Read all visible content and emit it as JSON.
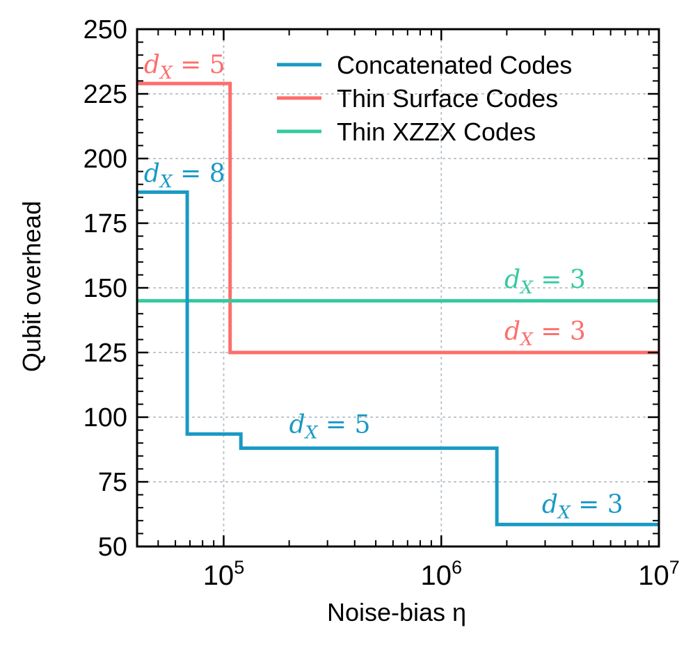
{
  "chart_data": {
    "type": "line",
    "title": "",
    "xlabel": "Noise-bias η",
    "ylabel": "Qubit overhead",
    "x_scale": "log",
    "xlim": [
      40000,
      10000000
    ],
    "ylim": [
      50,
      250
    ],
    "grid": true,
    "legend_position": "top-right",
    "x_ticks": [
      {
        "value": 100000,
        "base": "10",
        "exp": "5"
      },
      {
        "value": 1000000,
        "base": "10",
        "exp": "6"
      },
      {
        "value": 10000000,
        "base": "10",
        "exp": "7"
      }
    ],
    "y_ticks": [
      {
        "value": 50,
        "label": "50"
      },
      {
        "value": 75,
        "label": "75"
      },
      {
        "value": 100,
        "label": "100"
      },
      {
        "value": 125,
        "label": "125"
      },
      {
        "value": 150,
        "label": "150"
      },
      {
        "value": 175,
        "label": "175"
      },
      {
        "value": 200,
        "label": "200"
      },
      {
        "value": 225,
        "label": "225"
      },
      {
        "value": 250,
        "label": "250"
      }
    ],
    "series": [
      {
        "name": "Concatenated Codes",
        "color": "#1999c4",
        "step": true,
        "x": [
          40000,
          68000,
          68000,
          120000,
          120000,
          1800000,
          1800000,
          10000000
        ],
        "y": [
          187,
          187,
          93.5,
          93.5,
          88,
          88,
          58.5,
          58.5
        ]
      },
      {
        "name": "Thin Surface Codes",
        "color": "#fc6e6b",
        "step": true,
        "x": [
          40000,
          107000,
          107000,
          10000000
        ],
        "y": [
          229,
          229,
          125,
          125
        ]
      },
      {
        "name": "Thin XZZX Codes",
        "color": "#34c9a0",
        "step": false,
        "x": [
          40000,
          10000000
        ],
        "y": [
          145,
          145
        ]
      }
    ],
    "annotations": [
      {
        "series": 1,
        "text": "d",
        "sub": "X",
        "eq": " = 5",
        "x": 43000,
        "y": 233
      },
      {
        "series": 0,
        "text": "d",
        "sub": "X",
        "eq": " = 8",
        "x": 43000,
        "y": 191
      },
      {
        "series": 2,
        "text": "d",
        "sub": "X",
        "eq": " = 3",
        "x": 1950000,
        "y": 150
      },
      {
        "series": 1,
        "text": "d",
        "sub": "X",
        "eq": " = 3",
        "x": 1950000,
        "y": 130
      },
      {
        "series": 0,
        "text": "d",
        "sub": "X",
        "eq": " = 5",
        "x": 200000,
        "y": 94
      },
      {
        "series": 0,
        "text": "d",
        "sub": "X",
        "eq": " = 3",
        "x": 2900000,
        "y": 63
      }
    ]
  }
}
